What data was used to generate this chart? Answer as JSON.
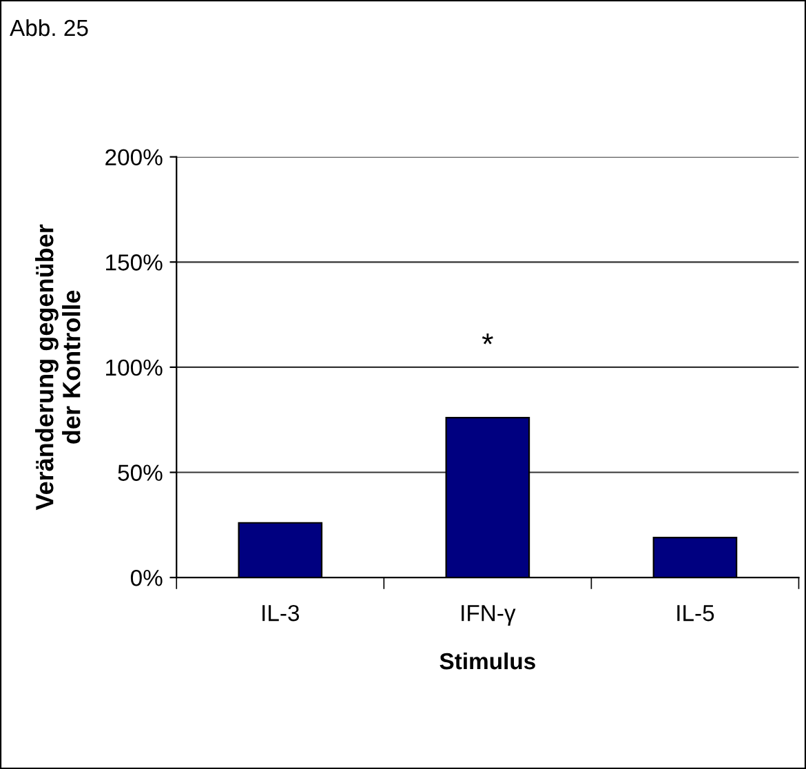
{
  "chart_data": {
    "type": "bar",
    "title": "Abb. 25",
    "xlabel": "Stimulus",
    "ylabel": "Veränderung gegenüber\nder Kontrolle",
    "categories": [
      "IL-3",
      "IFN-γ",
      "IL-5"
    ],
    "values": [
      26,
      76,
      19
    ],
    "color": "#000080",
    "ylim": [
      0,
      200
    ],
    "yticks": [
      {
        "value": 0,
        "label": "0%"
      },
      {
        "value": 50,
        "label": "50%"
      },
      {
        "value": 100,
        "label": "100%"
      },
      {
        "value": 150,
        "label": "150%"
      },
      {
        "value": 200,
        "label": "200%"
      }
    ],
    "grid": "y",
    "annotations": [
      "*"
    ]
  }
}
